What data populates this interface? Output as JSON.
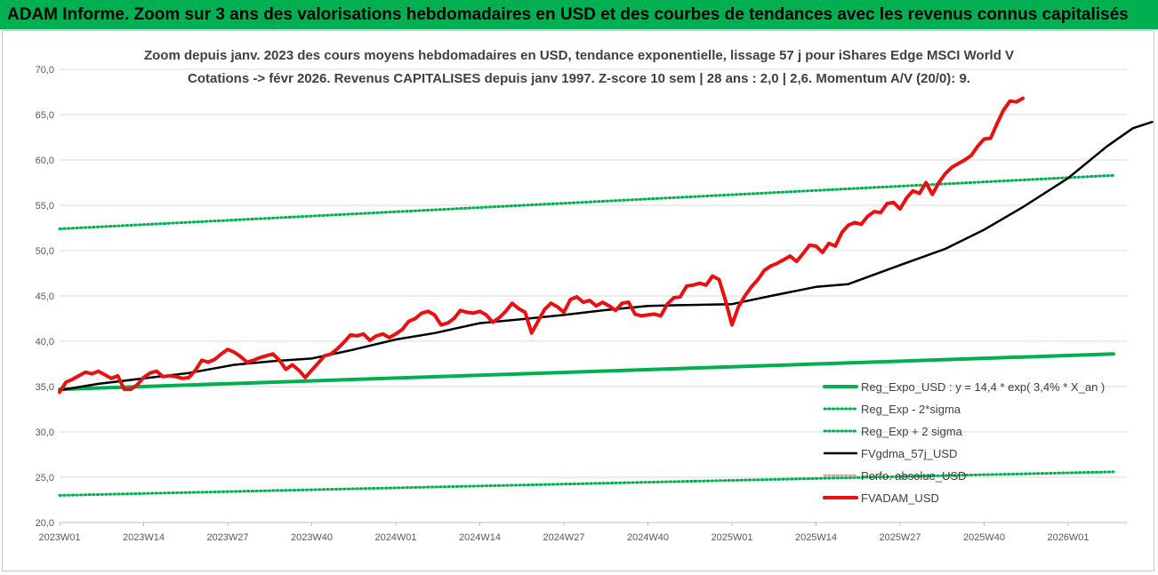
{
  "banner": {
    "title": "ADAM Informe. Zoom sur 3 ans des valorisations hebdomadaires en USD et des courbes de tendances avec les revenus connus capitalisés"
  },
  "colors": {
    "banner_bg": "#00b050",
    "reg_green": "#00b050",
    "red": "#e81010",
    "black": "#000000"
  },
  "chart_data": {
    "type": "line",
    "title_lines": [
      "Zoom depuis janv. 2023 des cours moyens hebdomadaires en USD, tendance exponentielle, lissage 57 j pour iShares Edge MSCI World V",
      "Cotations -> févr 2026. Revenus CAPITALISES depuis janv 1997. Z-score 10 sem | 28 ans : 2,0 | 2,6. Momentum A/V (20/0): 9."
    ],
    "y_ticks": [
      "70,0",
      "65,0",
      "60,0",
      "55,0",
      "50,0",
      "45,0",
      "40,0",
      "35,0",
      "30,0",
      "25,0",
      "20,0"
    ],
    "ylim": [
      20,
      70
    ],
    "grid": "horizontal",
    "legend_position": "right",
    "x_tick_labels": [
      "2023W01",
      "2023W14",
      "2023W27",
      "2023W40",
      "2024W01",
      "2024W14",
      "2024W27",
      "2024W40",
      "2025W01",
      "2025W14",
      "2025W27",
      "2025W40",
      "2026W01"
    ],
    "x_range_weeks": [
      0,
      163
    ],
    "series": [
      {
        "name": "Reg_Expo_USD : y = 14,4 * exp( 3,4% *  X_an )",
        "style": "thick",
        "color": "#00b050",
        "points": [
          [
            0,
            34.7
          ],
          [
            163,
            38.6
          ]
        ]
      },
      {
        "name": "Reg_Exp - 2*sigma",
        "style": "dotted",
        "color": "#00b050",
        "points": [
          [
            0,
            23.0
          ],
          [
            163,
            25.6
          ]
        ]
      },
      {
        "name": "Reg_Exp + 2 sigma",
        "style": "dotted",
        "color": "#00b050",
        "points": [
          [
            0,
            52.4
          ],
          [
            163,
            58.3
          ]
        ]
      },
      {
        "name": "FVgdma_57j_USD",
        "style": "solid",
        "color": "#000000",
        "points": [
          [
            0,
            34.6
          ],
          [
            6,
            35.3
          ],
          [
            13,
            35.9
          ],
          [
            20,
            36.5
          ],
          [
            27,
            37.4
          ],
          [
            33,
            37.8
          ],
          [
            39,
            38.1
          ],
          [
            45,
            39.0
          ],
          [
            52,
            40.2
          ],
          [
            58,
            40.9
          ],
          [
            65,
            42.0
          ],
          [
            71,
            42.4
          ],
          [
            78,
            42.9
          ],
          [
            84,
            43.4
          ],
          [
            91,
            43.9
          ],
          [
            97,
            44.0
          ],
          [
            104,
            44.1
          ],
          [
            110,
            45.0
          ],
          [
            117,
            46.0
          ],
          [
            122,
            46.3
          ],
          [
            130,
            48.4
          ],
          [
            137,
            50.2
          ],
          [
            143,
            52.3
          ],
          [
            149,
            54.8
          ],
          [
            156,
            58.0
          ],
          [
            162,
            61.5
          ],
          [
            166,
            63.5
          ],
          [
            169,
            64.2
          ]
        ]
      },
      {
        "name": "Perfo. absolue_USD",
        "style": "dotted",
        "color": "#e8a0a0",
        "points": []
      },
      {
        "name": "FVADAM_USD",
        "style": "thick",
        "color": "#e81010",
        "points": [
          [
            0,
            34.4
          ],
          [
            1,
            35.5
          ],
          [
            2,
            35.8
          ],
          [
            3,
            36.2
          ],
          [
            4,
            36.6
          ],
          [
            5,
            36.4
          ],
          [
            6,
            36.7
          ],
          [
            7,
            36.3
          ],
          [
            8,
            35.9
          ],
          [
            9,
            36.2
          ],
          [
            10,
            34.7
          ],
          [
            11,
            34.7
          ],
          [
            12,
            35.2
          ],
          [
            13,
            36.0
          ],
          [
            14,
            36.5
          ],
          [
            15,
            36.7
          ],
          [
            16,
            36.1
          ],
          [
            17,
            36.2
          ],
          [
            18,
            36.1
          ],
          [
            19,
            35.9
          ],
          [
            20,
            36.0
          ],
          [
            21,
            36.8
          ],
          [
            22,
            37.9
          ],
          [
            23,
            37.7
          ],
          [
            24,
            38.0
          ],
          [
            25,
            38.6
          ],
          [
            26,
            39.1
          ],
          [
            27,
            38.8
          ],
          [
            28,
            38.3
          ],
          [
            29,
            37.7
          ],
          [
            30,
            37.9
          ],
          [
            31,
            38.2
          ],
          [
            32,
            38.4
          ],
          [
            33,
            38.6
          ],
          [
            34,
            37.9
          ],
          [
            35,
            36.9
          ],
          [
            36,
            37.4
          ],
          [
            37,
            36.8
          ],
          [
            38,
            36.0
          ],
          [
            39,
            36.8
          ],
          [
            40,
            37.6
          ],
          [
            41,
            38.4
          ],
          [
            42,
            38.6
          ],
          [
            43,
            39.2
          ],
          [
            44,
            39.9
          ],
          [
            45,
            40.7
          ],
          [
            46,
            40.6
          ],
          [
            47,
            40.8
          ],
          [
            48,
            40.1
          ],
          [
            49,
            40.6
          ],
          [
            50,
            40.8
          ],
          [
            51,
            40.4
          ],
          [
            52,
            40.8
          ],
          [
            53,
            41.3
          ],
          [
            54,
            42.2
          ],
          [
            55,
            42.5
          ],
          [
            56,
            43.1
          ],
          [
            57,
            43.3
          ],
          [
            58,
            42.9
          ],
          [
            59,
            41.8
          ],
          [
            60,
            42.0
          ],
          [
            61,
            42.5
          ],
          [
            62,
            43.4
          ],
          [
            63,
            43.2
          ],
          [
            64,
            43.1
          ],
          [
            65,
            43.3
          ],
          [
            66,
            42.9
          ],
          [
            67,
            42.1
          ],
          [
            68,
            42.6
          ],
          [
            69,
            43.3
          ],
          [
            70,
            44.2
          ],
          [
            71,
            43.6
          ],
          [
            72,
            43.2
          ],
          [
            73,
            40.9
          ],
          [
            74,
            42.2
          ],
          [
            75,
            43.5
          ],
          [
            76,
            44.2
          ],
          [
            77,
            43.8
          ],
          [
            78,
            43.2
          ],
          [
            79,
            44.6
          ],
          [
            80,
            44.9
          ],
          [
            81,
            44.3
          ],
          [
            82,
            44.5
          ],
          [
            83,
            43.9
          ],
          [
            84,
            44.3
          ],
          [
            85,
            43.9
          ],
          [
            86,
            43.4
          ],
          [
            87,
            44.2
          ],
          [
            88,
            44.3
          ],
          [
            89,
            43.0
          ],
          [
            90,
            42.8
          ],
          [
            91,
            42.9
          ],
          [
            92,
            43.0
          ],
          [
            93,
            42.8
          ],
          [
            94,
            44.1
          ],
          [
            95,
            44.8
          ],
          [
            96,
            44.9
          ],
          [
            97,
            46.1
          ],
          [
            98,
            46.2
          ],
          [
            99,
            46.4
          ],
          [
            100,
            46.2
          ],
          [
            101,
            47.2
          ],
          [
            102,
            46.8
          ],
          [
            103,
            44.5
          ],
          [
            104,
            41.8
          ],
          [
            105,
            43.8
          ],
          [
            106,
            45.0
          ],
          [
            107,
            46.0
          ],
          [
            108,
            46.8
          ],
          [
            109,
            47.8
          ],
          [
            110,
            48.3
          ],
          [
            111,
            48.6
          ],
          [
            112,
            49.0
          ],
          [
            113,
            49.4
          ],
          [
            114,
            48.8
          ],
          [
            115,
            49.7
          ],
          [
            116,
            50.6
          ],
          [
            117,
            50.5
          ],
          [
            118,
            49.8
          ],
          [
            119,
            50.8
          ],
          [
            120,
            50.5
          ],
          [
            121,
            52.0
          ],
          [
            122,
            52.8
          ],
          [
            123,
            53.1
          ],
          [
            124,
            52.9
          ],
          [
            125,
            53.8
          ],
          [
            126,
            54.3
          ],
          [
            127,
            54.2
          ],
          [
            128,
            55.2
          ],
          [
            129,
            55.3
          ],
          [
            130,
            54.6
          ],
          [
            131,
            55.8
          ],
          [
            132,
            56.6
          ],
          [
            133,
            56.3
          ],
          [
            134,
            57.5
          ],
          [
            135,
            56.2
          ],
          [
            136,
            57.5
          ],
          [
            137,
            58.5
          ],
          [
            138,
            59.2
          ],
          [
            139,
            59.6
          ],
          [
            140,
            60.0
          ],
          [
            141,
            60.5
          ],
          [
            142,
            61.5
          ],
          [
            143,
            62.3
          ],
          [
            144,
            62.4
          ],
          [
            145,
            64.0
          ],
          [
            146,
            65.5
          ],
          [
            147,
            66.5
          ],
          [
            148,
            66.4
          ],
          [
            149,
            66.8
          ]
        ]
      }
    ]
  }
}
